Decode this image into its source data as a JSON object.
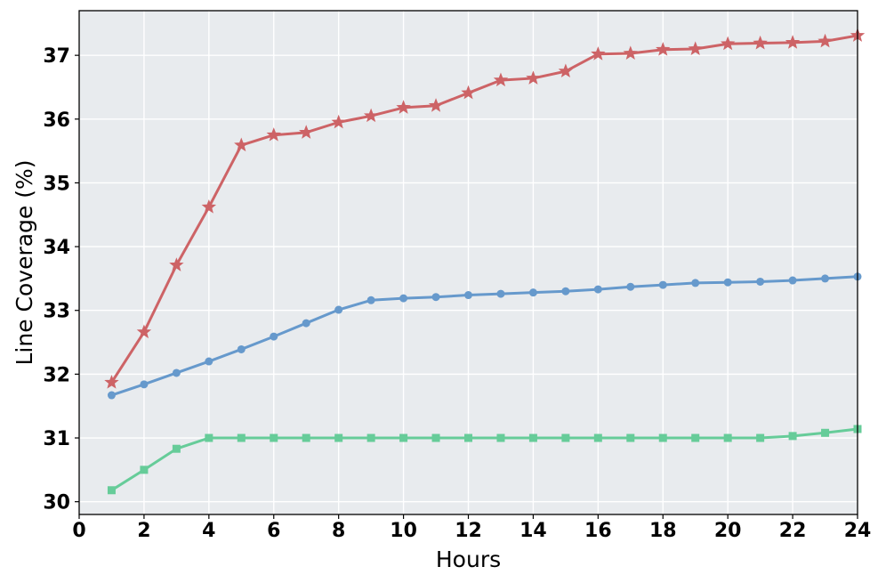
{
  "chart_data": {
    "type": "line",
    "xlabel": "Hours",
    "ylabel": "Line Coverage (%)",
    "xlim": [
      0,
      24
    ],
    "ylim": [
      29.8,
      37.7
    ],
    "xticks": [
      0,
      2,
      4,
      6,
      8,
      10,
      12,
      14,
      16,
      18,
      20,
      22,
      24
    ],
    "yticks": [
      30,
      31,
      32,
      33,
      34,
      35,
      36,
      37
    ],
    "grid": true,
    "background": "#e8ebee",
    "x": [
      1,
      2,
      3,
      4,
      5,
      6,
      7,
      8,
      9,
      10,
      11,
      12,
      13,
      14,
      15,
      16,
      17,
      18,
      19,
      20,
      21,
      22,
      23,
      24
    ],
    "series": [
      {
        "color": "#cd6366",
        "marker": "star",
        "values": [
          31.87,
          32.66,
          33.71,
          34.62,
          35.59,
          35.75,
          35.79,
          35.95,
          36.05,
          36.18,
          36.21,
          36.41,
          36.61,
          36.64,
          36.75,
          37.02,
          37.03,
          37.09,
          37.1,
          37.18,
          37.19,
          37.2,
          37.22,
          37.31
        ]
      },
      {
        "color": "#6699cc",
        "marker": "circle",
        "values": [
          31.67,
          31.84,
          32.02,
          32.2,
          32.39,
          32.59,
          32.8,
          33.01,
          33.16,
          33.19,
          33.21,
          33.24,
          33.26,
          33.28,
          33.3,
          33.33,
          33.37,
          33.4,
          33.43,
          33.44,
          33.45,
          33.47,
          33.5,
          33.53
        ]
      },
      {
        "color": "#66cc99",
        "marker": "square",
        "values": [
          30.18,
          30.5,
          30.83,
          31.0,
          31.0,
          31.0,
          31.0,
          31.0,
          31.0,
          31.0,
          31.0,
          31.0,
          31.0,
          31.0,
          31.0,
          31.0,
          31.0,
          31.0,
          31.0,
          31.0,
          31.0,
          31.03,
          31.08,
          31.14
        ]
      }
    ]
  }
}
